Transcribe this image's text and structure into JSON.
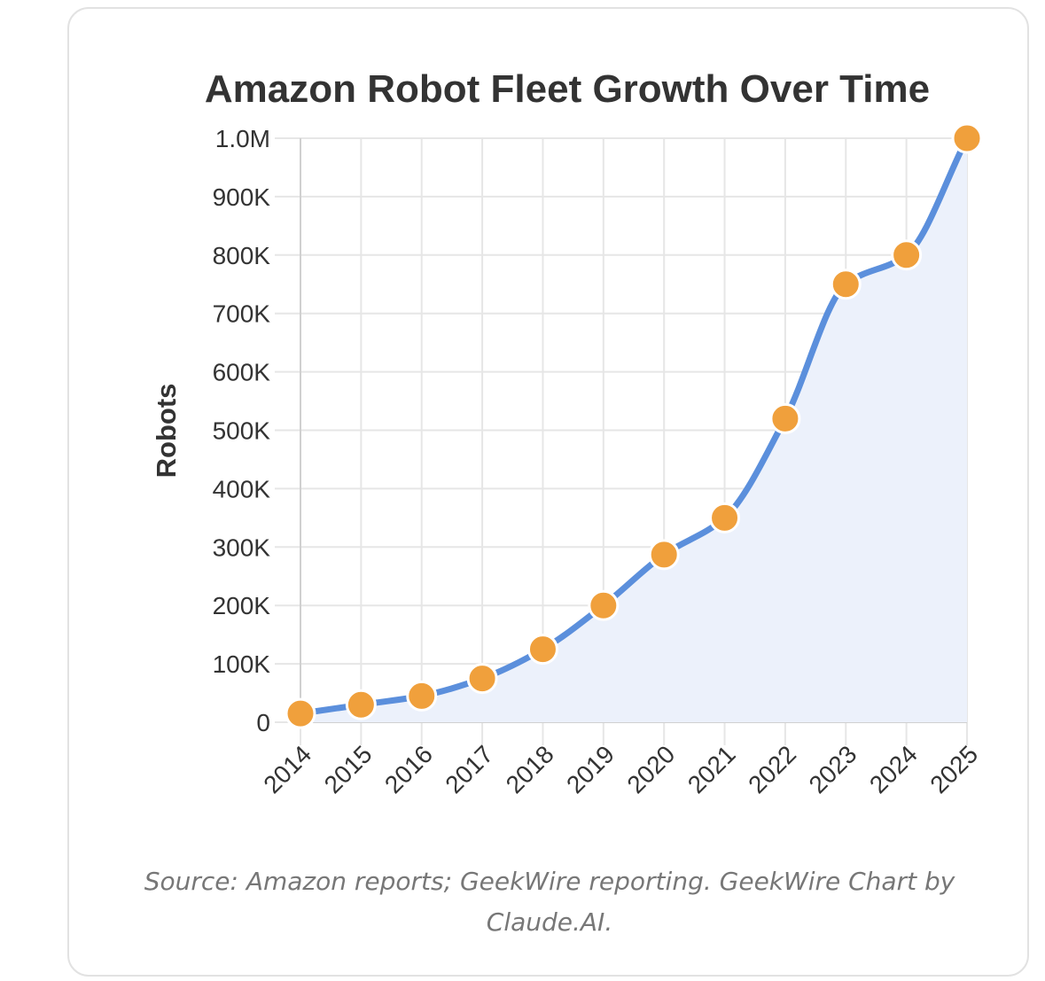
{
  "chart_data": {
    "type": "line",
    "title": "Amazon Robot Fleet Growth Over Time",
    "xlabel": "",
    "ylabel": "Robots",
    "categories": [
      "2014",
      "2015",
      "2016",
      "2017",
      "2018",
      "2019",
      "2020",
      "2021",
      "2022",
      "2023",
      "2024",
      "2025"
    ],
    "series": [
      {
        "values": [
          15000,
          30000,
          45000,
          75000,
          125000,
          200000,
          287000,
          350000,
          520000,
          750000,
          800000,
          1000000
        ],
        "line_color": "#5b8fdc",
        "marker_color": "#f0a03c",
        "fill_color": "#ecf1fb"
      }
    ],
    "ylim": [
      0,
      1000000
    ],
    "y_ticks": [
      {
        "value": 0,
        "label": "0"
      },
      {
        "value": 100000,
        "label": "100K"
      },
      {
        "value": 200000,
        "label": "200K"
      },
      {
        "value": 300000,
        "label": "300K"
      },
      {
        "value": 400000,
        "label": "400K"
      },
      {
        "value": 500000,
        "label": "500K"
      },
      {
        "value": 600000,
        "label": "600K"
      },
      {
        "value": 700000,
        "label": "700K"
      },
      {
        "value": 800000,
        "label": "800K"
      },
      {
        "value": 900000,
        "label": "900K"
      },
      {
        "value": 1000000,
        "label": "1.0M"
      }
    ],
    "grid": true,
    "area_fill": true,
    "smooth": true
  },
  "source_note": "Source: Amazon reports; GeekWire reporting. GeekWire Chart by Claude.AI."
}
